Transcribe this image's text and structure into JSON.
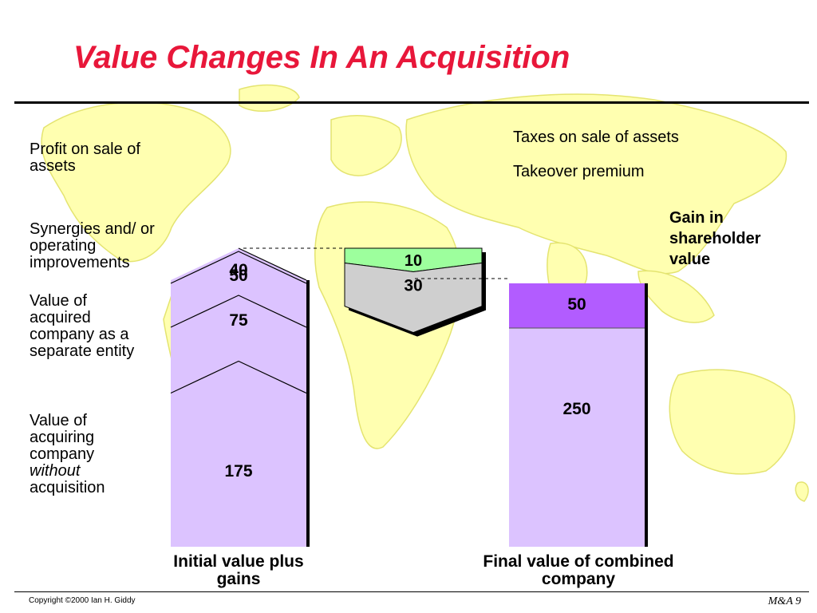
{
  "slide": {
    "title": "Value Changes In An Acquisition",
    "footer_left": "Copyright ©2000 Ian H. Giddy",
    "footer_right": "M&A 9"
  },
  "labels": {
    "profit_on_sale": "Profit on sale of assets",
    "synergies": "Synergies and/ or operating improvements",
    "value_acquired": "Value of acquired company as a separate entity",
    "value_acquiring_pre": "Value of acquiring company",
    "value_acquiring_italic": "without",
    "value_acquiring_post": "acquisition",
    "taxes": "Taxes on sale of assets",
    "premium": "Takeover premium",
    "gain": "Gain in shareholder value"
  },
  "chart_data": {
    "type": "bar",
    "title": "Value Changes In An Acquisition",
    "categories": [
      "Initial value plus gains",
      "Final value of combined company"
    ],
    "series": [
      {
        "name": "Value of acquiring company without acquisition",
        "values": [
          175,
          null
        ]
      },
      {
        "name": "Value of acquired company as a separate entity",
        "values": [
          75,
          null
        ]
      },
      {
        "name": "Synergies and/ or operating improvements",
        "values": [
          50,
          null
        ]
      },
      {
        "name": "Profit on sale of assets",
        "values": [
          40,
          null
        ]
      },
      {
        "name": "Takeover premium",
        "values": [
          30,
          null
        ]
      },
      {
        "name": "Taxes on sale of assets",
        "values": [
          10,
          null
        ]
      },
      {
        "name": "Final value of combined company",
        "values": [
          null,
          250
        ]
      },
      {
        "name": "Gain in shareholder value",
        "values": [
          null,
          50
        ]
      }
    ],
    "floating_values": {
      "taxes": 10,
      "premium": 30
    },
    "stacked": true,
    "colors": {
      "bar_fill": "#dcc3ff",
      "gain_fill": "#b25cff",
      "taxes_fill": "#9dff9d",
      "premium_fill": "#cfcfcf",
      "divider": "#000000"
    },
    "grid": false,
    "xlabel": "",
    "ylabel": ""
  }
}
